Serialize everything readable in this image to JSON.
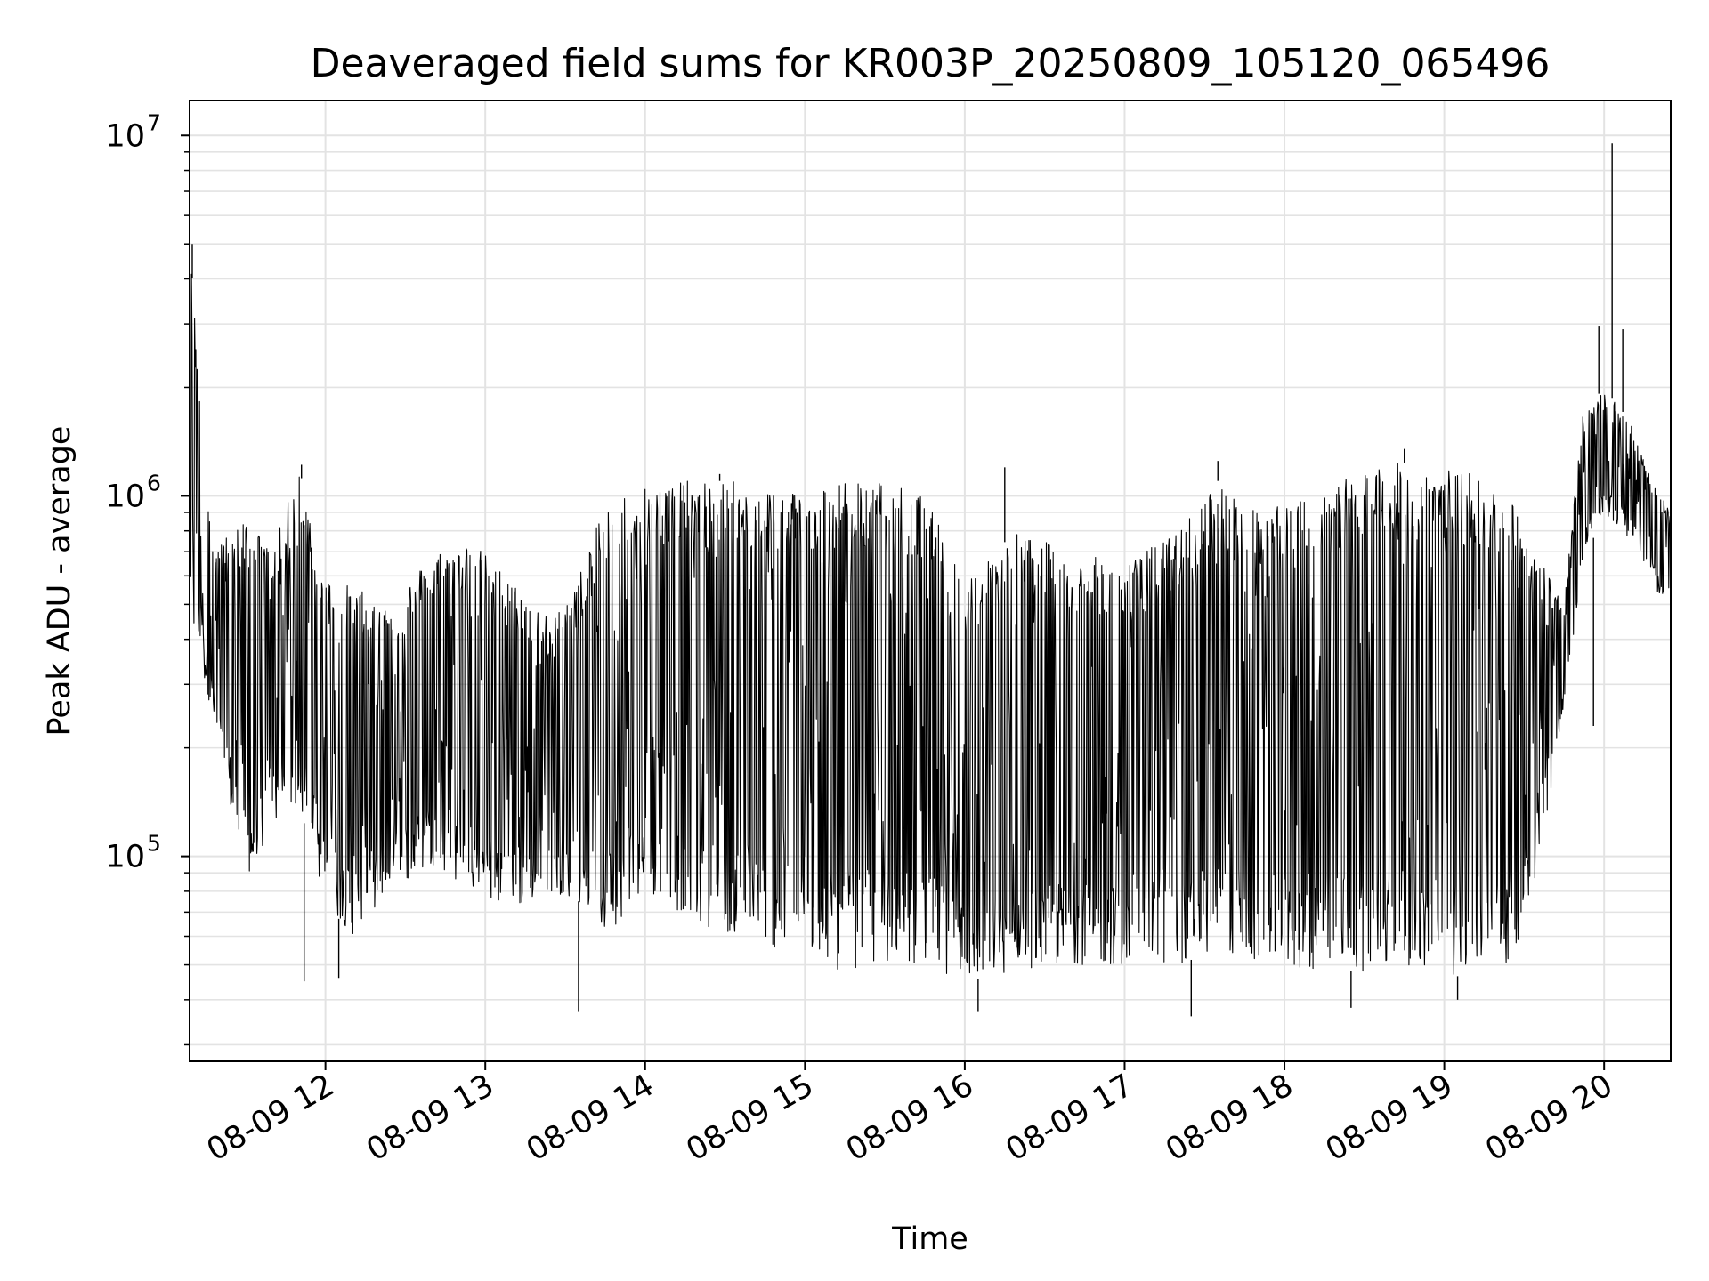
{
  "chart_data": {
    "type": "line",
    "title": "Deaveraged field sums for KR003P_20250809_105120_065496",
    "xlabel": "Time",
    "ylabel": "Peak ADU - average",
    "yscale": "log",
    "ylim": [
      27000,
      12500000
    ],
    "xlim": [
      "2025-08-09 11:09",
      "2025-08-09 20:25"
    ],
    "grid": true,
    "x_ticks": [
      {
        "label": "08-09 12",
        "time": "2025-08-09 12:00"
      },
      {
        "label": "08-09 13",
        "time": "2025-08-09 13:00"
      },
      {
        "label": "08-09 14",
        "time": "2025-08-09 14:00"
      },
      {
        "label": "08-09 15",
        "time": "2025-08-09 15:00"
      },
      {
        "label": "08-09 16",
        "time": "2025-08-09 16:00"
      },
      {
        "label": "08-09 17",
        "time": "2025-08-09 17:00"
      },
      {
        "label": "08-09 18",
        "time": "2025-08-09 18:00"
      },
      {
        "label": "08-09 19",
        "time": "2025-08-09 19:00"
      },
      {
        "label": "08-09 20",
        "time": "2025-08-09 20:00"
      }
    ],
    "y_ticks": [
      {
        "base": "10",
        "exp": "5",
        "value": 100000
      },
      {
        "base": "10",
        "exp": "6",
        "value": 1000000
      },
      {
        "base": "10",
        "exp": "7",
        "value": 10000000
      }
    ],
    "series": [
      {
        "color": "#000000",
        "envelope": [
          {
            "time": "2025-08-09 11:09",
            "low": 450000,
            "high": 5000000
          },
          {
            "time": "2025-08-09 11:18",
            "low": 240000,
            "high": 700000
          },
          {
            "time": "2025-08-09 11:30",
            "low": 80000,
            "high": 880000
          },
          {
            "time": "2025-08-09 11:40",
            "low": 120000,
            "high": 700000
          },
          {
            "time": "2025-08-09 11:50",
            "low": 140000,
            "high": 1200000
          },
          {
            "time": "2025-08-09 12:00",
            "low": 75000,
            "high": 600000
          },
          {
            "time": "2025-08-09 12:10",
            "low": 60000,
            "high": 560000
          },
          {
            "time": "2025-08-09 12:25",
            "low": 80000,
            "high": 500000
          },
          {
            "time": "2025-08-09 12:40",
            "low": 95000,
            "high": 700000
          },
          {
            "time": "2025-08-09 12:55",
            "low": 80000,
            "high": 750000
          },
          {
            "time": "2025-08-09 13:10",
            "low": 70000,
            "high": 580000
          },
          {
            "time": "2025-08-09 13:25",
            "low": 80000,
            "high": 450000
          },
          {
            "time": "2025-08-09 13:35",
            "low": 75000,
            "high": 600000
          },
          {
            "time": "2025-08-09 13:45",
            "low": 60000,
            "high": 950000
          },
          {
            "time": "2025-08-09 14:00",
            "low": 80000,
            "high": 1100000
          },
          {
            "time": "2025-08-09 14:20",
            "low": 65000,
            "high": 1100000
          },
          {
            "time": "2025-08-09 14:35",
            "low": 60000,
            "high": 1100000
          },
          {
            "time": "2025-08-09 14:50",
            "low": 55000,
            "high": 1050000
          },
          {
            "time": "2025-08-09 15:10",
            "low": 48000,
            "high": 1100000
          },
          {
            "time": "2025-08-09 15:30",
            "low": 50000,
            "high": 1100000
          },
          {
            "time": "2025-08-09 15:45",
            "low": 50000,
            "high": 1000000
          },
          {
            "time": "2025-08-09 16:00",
            "low": 45000,
            "high": 600000
          },
          {
            "time": "2025-08-09 16:20",
            "low": 48000,
            "high": 800000
          },
          {
            "time": "2025-08-09 16:40",
            "low": 50000,
            "high": 700000
          },
          {
            "time": "2025-08-09 17:00",
            "low": 50000,
            "high": 650000
          },
          {
            "time": "2025-08-09 17:20",
            "low": 50000,
            "high": 800000
          },
          {
            "time": "2025-08-09 17:35",
            "low": 55000,
            "high": 1100000
          },
          {
            "time": "2025-08-09 17:50",
            "low": 50000,
            "high": 900000
          },
          {
            "time": "2025-08-09 18:10",
            "low": 48000,
            "high": 1000000
          },
          {
            "time": "2025-08-09 18:30",
            "low": 48000,
            "high": 1200000
          },
          {
            "time": "2025-08-09 18:50",
            "low": 48000,
            "high": 1250000
          },
          {
            "time": "2025-08-09 19:10",
            "low": 46000,
            "high": 1150000
          },
          {
            "time": "2025-08-09 19:25",
            "low": 50000,
            "high": 1000000
          },
          {
            "time": "2025-08-09 19:35",
            "low": 90000,
            "high": 700000
          },
          {
            "time": "2025-08-09 19:45",
            "low": 260000,
            "high": 500000
          },
          {
            "time": "2025-08-09 19:52",
            "low": 650000,
            "high": 1700000
          },
          {
            "time": "2025-08-09 20:00",
            "low": 900000,
            "high": 2000000
          },
          {
            "time": "2025-08-09 20:10",
            "low": 750000,
            "high": 1600000
          },
          {
            "time": "2025-08-09 20:18",
            "low": 600000,
            "high": 1100000
          },
          {
            "time": "2025-08-09 20:25",
            "low": 400000,
            "high": 900000
          }
        ],
        "peaks": [
          {
            "time": "2025-08-09 11:10",
            "value": 5000000
          },
          {
            "time": "2025-08-09 11:51",
            "value": 1220000
          },
          {
            "time": "2025-08-09 14:28",
            "value": 1150000
          },
          {
            "time": "2025-08-09 16:15",
            "value": 1200000
          },
          {
            "time": "2025-08-09 17:35",
            "value": 1250000
          },
          {
            "time": "2025-08-09 18:45",
            "value": 1350000
          },
          {
            "time": "2025-08-09 19:58",
            "value": 2950000
          },
          {
            "time": "2025-08-09 20:03",
            "value": 9500000
          },
          {
            "time": "2025-08-09 20:07",
            "value": 2900000
          }
        ],
        "dips": [
          {
            "time": "2025-08-09 11:52",
            "value": 45000
          },
          {
            "time": "2025-08-09 12:05",
            "value": 46000
          },
          {
            "time": "2025-08-09 13:35",
            "value": 37000
          },
          {
            "time": "2025-08-09 16:05",
            "value": 37000
          },
          {
            "time": "2025-08-09 17:25",
            "value": 36000
          },
          {
            "time": "2025-08-09 18:25",
            "value": 38000
          },
          {
            "time": "2025-08-09 19:05",
            "value": 40000
          },
          {
            "time": "2025-08-09 19:56",
            "value": 230000
          }
        ]
      }
    ]
  }
}
